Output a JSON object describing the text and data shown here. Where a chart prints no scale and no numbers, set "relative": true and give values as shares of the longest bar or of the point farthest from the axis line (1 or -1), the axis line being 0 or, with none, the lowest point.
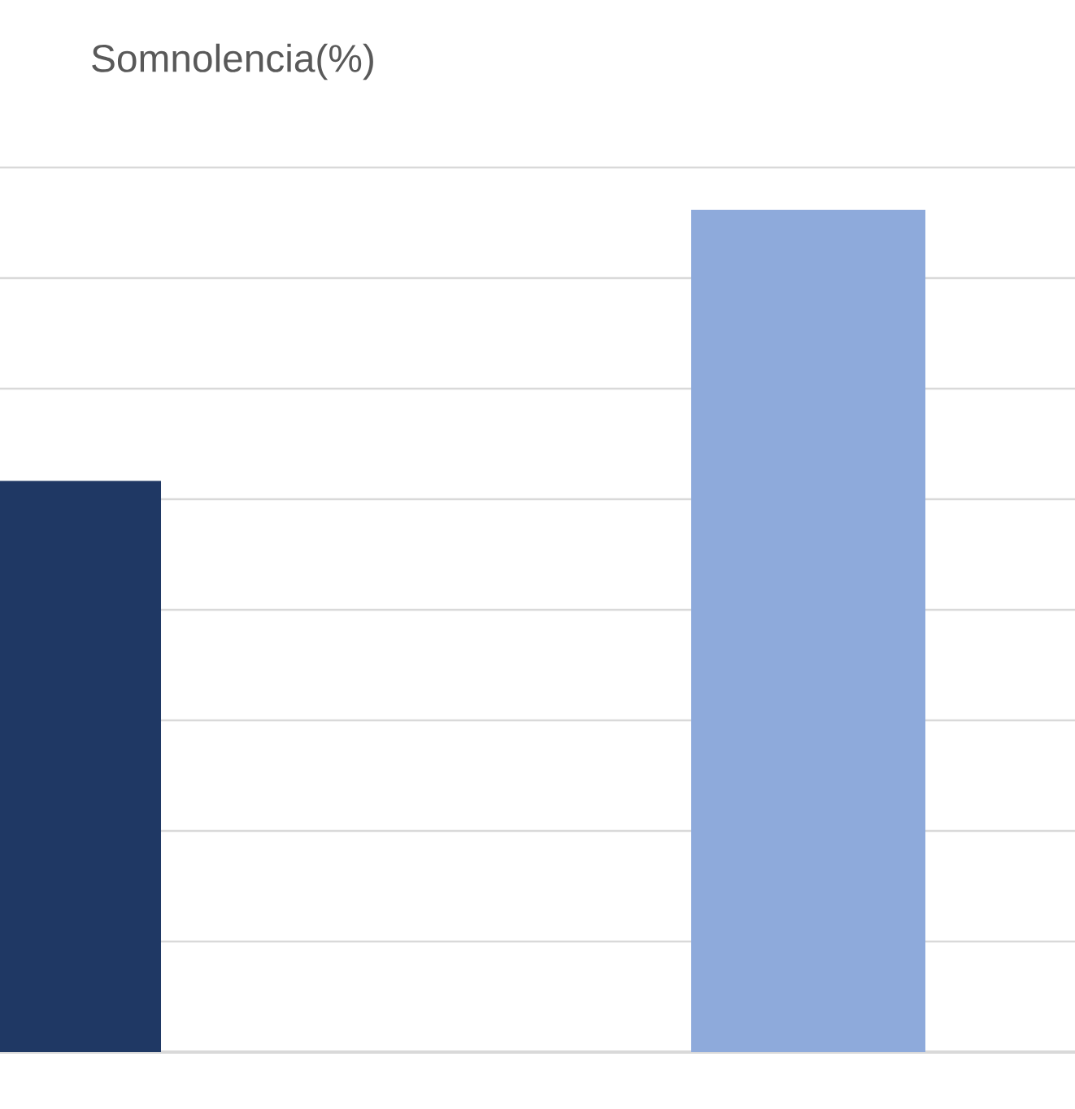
{
  "chart_data": {
    "type": "bar",
    "title": "Somnolencia(%)",
    "categories": [
      null,
      null
    ],
    "values": [
      0.678,
      1
    ],
    "colors": [
      "#1f3864",
      "#8eaadb"
    ],
    "relative": true,
    "grid": "y"
  }
}
